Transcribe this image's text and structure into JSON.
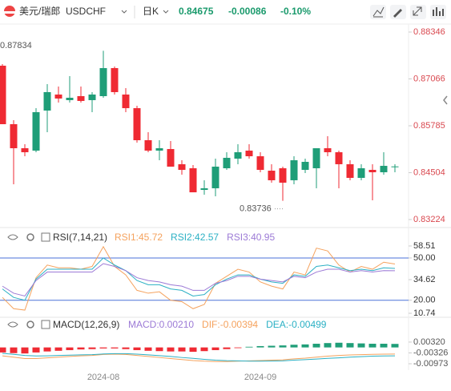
{
  "header": {
    "name": "美元/瑞郎",
    "symbol": "USDCHF",
    "period": "日K",
    "price": "0.84675",
    "change": "-0.00086",
    "change_pct": "-0.10%"
  },
  "chart_data": [
    {
      "type": "candlestick",
      "categories": [
        null,
        null,
        null,
        null,
        null,
        null,
        null,
        null,
        null,
        "2024-08",
        null,
        null,
        null,
        null,
        null,
        null,
        null,
        null,
        null,
        null,
        null,
        null,
        null,
        "2024-09",
        null,
        null,
        null,
        null,
        null,
        null,
        null,
        null,
        null,
        null,
        null,
        null
      ],
      "open": [
        0.87427,
        0.85829,
        0.85172,
        0.85107,
        0.86201,
        0.86639,
        0.86486,
        0.86595,
        0.86486,
        0.86595,
        0.87361,
        0.86639,
        0.86267,
        0.85391,
        0.85107,
        0.8515,
        0.84735,
        0.84625,
        0.84034,
        0.84078,
        0.84625,
        0.84888,
        0.85107,
        0.84953,
        0.84559,
        0.84625,
        0.84297,
        0.84581,
        0.84625,
        0.85172,
        0.85063,
        0.84735,
        0.84362,
        0.84581,
        0.84516,
        0.84669
      ],
      "high": [
        0.87471,
        0.85938,
        0.85282,
        0.86267,
        0.86924,
        0.86858,
        0.87142,
        0.86858,
        0.86705,
        0.87834,
        0.87405,
        0.86814,
        0.86332,
        0.8561,
        0.85391,
        0.85369,
        0.84844,
        0.84713,
        0.84297,
        0.84888,
        0.85063,
        0.85282,
        0.85282,
        0.85063,
        0.84735,
        0.84669,
        0.84953,
        0.84888,
        0.85172,
        0.85501,
        0.85107,
        0.84844,
        0.84735,
        0.84735,
        0.85063,
        0.84735
      ],
      "low": [
        0.85829,
        0.84187,
        0.84953,
        0.85063,
        0.8561,
        0.8642,
        0.8642,
        0.8642,
        0.86157,
        0.86551,
        0.86639,
        0.86157,
        0.85326,
        0.85063,
        0.84844,
        0.84669,
        0.8445,
        0.83968,
        0.83903,
        0.83859,
        0.84581,
        0.84735,
        0.84888,
        0.84516,
        0.84231,
        0.83736,
        0.84187,
        0.84494,
        0.84078,
        0.84953,
        0.84078,
        0.84297,
        0.84297,
        0.83749,
        0.8445,
        0.84516
      ],
      "close": [
        0.85829,
        0.85172,
        0.85063,
        0.86157,
        0.86705,
        0.8653,
        0.86551,
        0.86464,
        0.86639,
        0.87361,
        0.86705,
        0.86267,
        0.85391,
        0.85107,
        0.85172,
        0.84669,
        0.84581,
        0.83968,
        0.84078,
        0.84669,
        0.8491,
        0.85063,
        0.84953,
        0.84581,
        0.84297,
        0.84231,
        0.84844,
        0.848,
        0.85172,
        0.85063,
        0.84735,
        0.84362,
        0.84625,
        0.84516,
        0.84691,
        0.84675
      ],
      "up_color": "#1f9e78",
      "down_color": "#ef2a33",
      "ylim": [
        0.83027,
        0.88565
      ],
      "yticks": [
        0.88346,
        0.87066,
        0.85785,
        0.84504,
        0.83224
      ],
      "annotations": [
        {
          "text": "0.87834",
          "index": 9
        },
        {
          "text": "0.83736",
          "index": 25
        }
      ]
    },
    {
      "type": "line",
      "title": "RSI(7,14,21)",
      "series": [
        {
          "name": "RSI1:45.72",
          "color": "#f5a25d",
          "values": [
            22,
            14,
            13,
            36,
            45,
            43,
            43,
            42,
            44,
            58,
            44,
            38,
            27,
            25,
            26,
            20,
            19,
            14,
            17,
            32,
            37,
            42,
            40,
            33,
            30,
            28,
            40,
            38,
            57,
            55,
            45,
            40,
            44,
            42,
            47,
            45.72
          ]
        },
        {
          "name": "RSI2:42.57",
          "color": "#2bb0c4",
          "values": [
            28,
            22,
            20,
            35,
            42,
            42,
            42,
            42,
            42,
            50,
            45,
            41,
            34,
            31,
            31,
            28,
            27,
            23,
            24,
            31,
            35,
            38,
            38,
            35,
            33,
            32,
            38,
            37,
            44,
            45,
            43,
            41,
            42,
            41,
            43,
            42.57
          ]
        },
        {
          "name": "RSI3:40.95",
          "color": "#9c7ad6",
          "values": [
            30,
            25,
            23,
            34,
            40,
            40,
            40,
            40,
            40,
            46,
            44,
            41,
            36,
            34,
            33,
            31,
            30,
            27,
            27,
            32,
            34,
            37,
            37,
            35,
            34,
            33,
            37,
            36,
            40,
            42,
            42,
            40,
            41,
            40,
            41,
            40.95
          ]
        }
      ],
      "ylim": [
        10.74,
        58.51
      ],
      "yticks": [
        58.51,
        {
          "value": 50,
          "label": "50.00"
        },
        34.62,
        {
          "value": 20,
          "label": "20.00"
        },
        10.74
      ],
      "guide_lines": [
        50,
        20
      ],
      "guide_color": "#4a72d8"
    },
    {
      "type": "combo",
      "title": "MACD(12,26,9)",
      "series": [
        {
          "name": "MACD:0.00210",
          "kind": "bar",
          "color": "#9c7ad6",
          "up_color": "#1f9e78",
          "down_color": "#ef2a33",
          "values": [
            -0.003,
            -0.0034,
            -0.0036,
            -0.003,
            -0.0024,
            -0.002,
            -0.0016,
            -0.0012,
            -0.001,
            -0.0006,
            -0.0006,
            -0.001,
            -0.0016,
            -0.002,
            -0.0022,
            -0.0024,
            -0.0024,
            -0.0026,
            -0.0022,
            -0.0016,
            -0.001,
            -0.0004,
            0.0004,
            0.0008,
            0.001,
            0.0012,
            0.0016,
            0.0018,
            0.0022,
            0.0026,
            0.0028,
            0.0026,
            0.0024,
            0.0022,
            0.0022,
            0.0021
          ]
        },
        {
          "name": "DIF:-0.00394",
          "kind": "line",
          "color": "#f5a25d",
          "values": [
            -0.005,
            -0.0058,
            -0.0066,
            -0.0066,
            -0.0062,
            -0.0058,
            -0.0054,
            -0.005,
            -0.0048,
            -0.0042,
            -0.004,
            -0.0042,
            -0.0048,
            -0.0054,
            -0.006,
            -0.0066,
            -0.0072,
            -0.0078,
            -0.0082,
            -0.0084,
            -0.0084,
            -0.0082,
            -0.008,
            -0.0078,
            -0.0076,
            -0.0074,
            -0.0068,
            -0.0064,
            -0.0058,
            -0.0052,
            -0.0048,
            -0.0045,
            -0.0043,
            -0.0041,
            -0.004,
            -0.00394
          ]
        },
        {
          "name": "DEA:-0.00499",
          "kind": "line",
          "color": "#2bb0c4",
          "values": [
            -0.0035,
            -0.0041,
            -0.0048,
            -0.0051,
            -0.005,
            -0.0048,
            -0.0046,
            -0.0044,
            -0.0043,
            -0.0039,
            -0.0037,
            -0.0037,
            -0.004,
            -0.0044,
            -0.0049,
            -0.0054,
            -0.006,
            -0.0065,
            -0.0071,
            -0.0076,
            -0.0079,
            -0.008,
            -0.0082,
            -0.0082,
            -0.0081,
            -0.008,
            -0.0076,
            -0.0073,
            -0.0069,
            -0.0065,
            -0.0062,
            -0.0058,
            -0.0055,
            -0.0052,
            -0.0051,
            -0.00499
          ]
        }
      ],
      "ylim": [
        -0.0126,
        0.0089
      ],
      "yticks": [
        {
          "value": 0.0032,
          "label": "0.00320"
        },
        -0.00326,
        -0.00973
      ]
    }
  ]
}
